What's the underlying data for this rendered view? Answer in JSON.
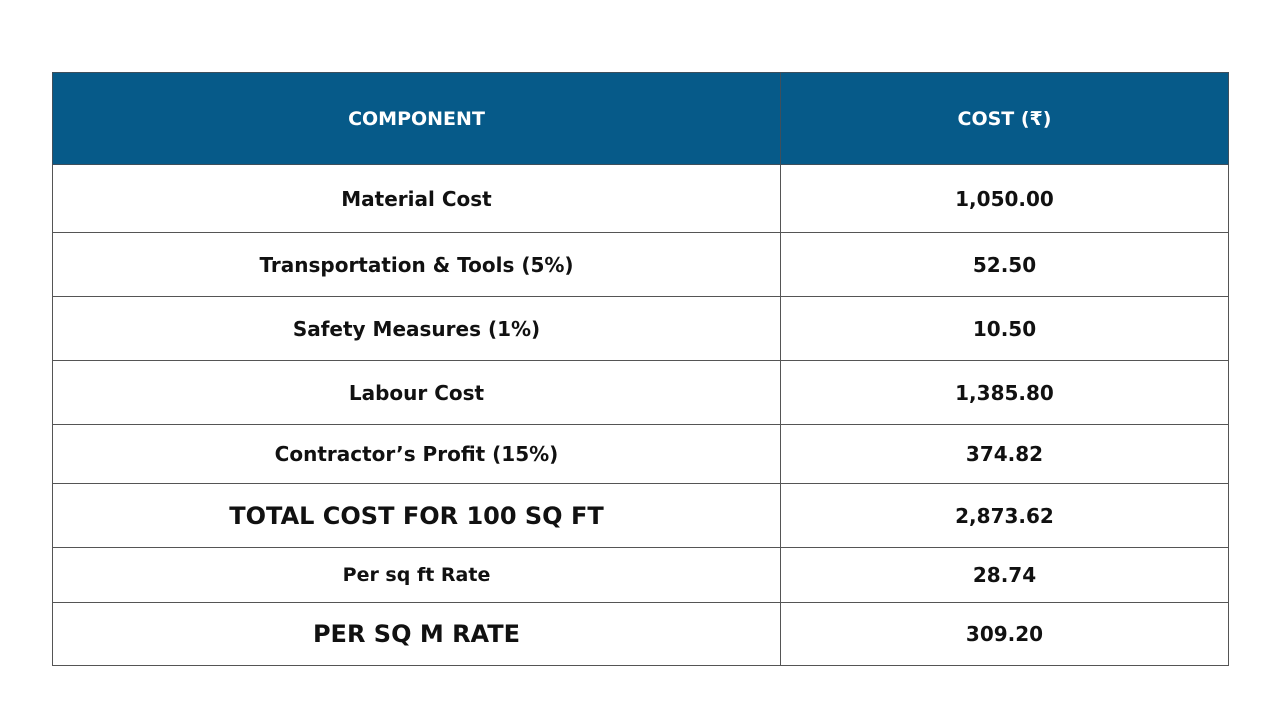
{
  "table": {
    "headers": {
      "component": "COMPONENT",
      "cost": "COST (₹)"
    },
    "rows": [
      {
        "component": "Material Cost",
        "cost": "1,050.00"
      },
      {
        "component": "Transportation & Tools (5%)",
        "cost": "52.50"
      },
      {
        "component": "Safety Measures (1%)",
        "cost": "10.50"
      },
      {
        "component": "Labour Cost",
        "cost": "1,385.80"
      },
      {
        "component": "Contractor’s Profit (15%)",
        "cost": "374.82"
      },
      {
        "component": "TOTAL COST FOR 100 SQ FT",
        "cost": "2,873.62"
      },
      {
        "component": "Per sq ft Rate",
        "cost": "28.74"
      },
      {
        "component": "PER SQ M RATE",
        "cost": "309.20"
      }
    ]
  },
  "colors": {
    "header_background": "#065a89",
    "header_text": "#ffffff",
    "border": "#555555"
  }
}
